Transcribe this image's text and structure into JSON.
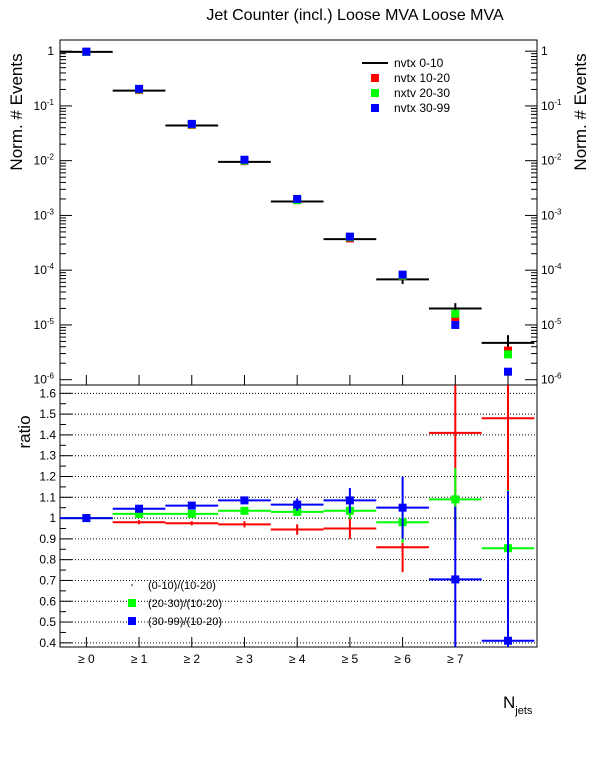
{
  "chart_data": [
    {
      "type": "scatter",
      "title": "Jet Counter (incl.) Loose MVA Loose MVA",
      "ylabel": "Norm. # Events",
      "ylabel_right": "Norm. # Events",
      "yscale": "log",
      "ylim": [
        8e-07,
        1.6
      ],
      "y_ticks": [
        {
          "value": 1,
          "base": "1",
          "exp": ""
        },
        {
          "value": 0.1,
          "base": "10",
          "exp": "-1"
        },
        {
          "value": 0.01,
          "base": "10",
          "exp": "-2"
        },
        {
          "value": 0.001,
          "base": "10",
          "exp": "-3"
        },
        {
          "value": 0.0001,
          "base": "10",
          "exp": "-4"
        },
        {
          "value": 1e-05,
          "base": "10",
          "exp": "-5"
        },
        {
          "value": 1e-06,
          "base": "10",
          "exp": "-6"
        }
      ],
      "x_bins": 9,
      "legend_position": "top-right",
      "series": [
        {
          "name": "nvtx 0-10",
          "color": "#000000",
          "marker": "line",
          "values": [
            0.97,
            0.19,
            0.044,
            0.0095,
            0.0018,
            0.00037,
            6.8e-05,
            2e-05,
            4.7e-06
          ],
          "err_lo": [
            0,
            0,
            0,
            0,
            0,
            0,
            1.2e-05,
            5e-06,
            1.8e-06
          ],
          "err_hi": [
            0,
            0,
            0,
            0,
            0,
            0,
            1.2e-05,
            5e-06,
            1.8e-06
          ]
        },
        {
          "name": "nvtx 10-20",
          "color": "#ff0000",
          "marker": "square",
          "values": [
            0.97,
            0.195,
            0.045,
            0.0098,
            0.0019,
            0.00038,
            7.9e-05,
            1.4e-05,
            3.4e-06
          ],
          "err_lo": [
            0,
            0,
            0,
            0,
            0,
            0,
            0,
            0,
            0
          ],
          "err_hi": [
            0,
            0,
            0,
            0,
            0,
            0,
            0,
            0,
            0
          ]
        },
        {
          "name": "nxtv 20-30",
          "color": "#00ff00",
          "marker": "square",
          "values": [
            0.97,
            0.2,
            0.046,
            0.01,
            0.0019,
            0.0004,
            8e-05,
            1.6e-05,
            2.9e-06
          ],
          "err_lo": [
            0,
            0,
            0,
            0,
            0,
            0,
            0,
            0,
            0
          ],
          "err_hi": [
            0,
            0,
            0,
            0,
            0,
            0,
            0,
            0,
            0
          ]
        },
        {
          "name": "nvtx 30-99",
          "color": "#0000ff",
          "marker": "square",
          "values": [
            0.98,
            0.205,
            0.047,
            0.0104,
            0.002,
            0.00041,
            8.3e-05,
            1e-05,
            1.4e-06
          ],
          "err_lo": [
            0,
            0,
            0,
            0,
            0,
            0,
            0,
            0,
            0
          ],
          "err_hi": [
            0,
            0,
            0,
            0,
            0,
            0,
            0,
            0,
            0
          ]
        }
      ]
    },
    {
      "type": "scatter",
      "ylabel": "ratio",
      "xlabel_base": "N",
      "xlabel_sub": "jets",
      "ylim": [
        0.38,
        1.64
      ],
      "y_ticks": [
        0.4,
        0.5,
        0.6,
        0.7,
        0.8,
        0.9,
        1,
        1.1,
        1.2,
        1.3,
        1.4,
        1.5,
        1.6
      ],
      "y_tick_labels": [
        "0.4",
        "0.5",
        "0.6",
        "0.7",
        "0.8",
        "0.9",
        "1",
        "1.1",
        "1.2",
        "1.3",
        "1.4",
        "1.5",
        "1.6"
      ],
      "grid": "horizontal",
      "categories": [
        "≥ 0",
        "≥ 1",
        "≥ 2",
        "≥ 3",
        "≥ 4",
        "≥ 5",
        "≥ 6",
        "≥ 7",
        ""
      ],
      "legend_position": "bottom-left",
      "series": [
        {
          "name": "(0-10)/(10-20)",
          "color": "#ff0000",
          "marker": "none",
          "values": [
            1.0,
            0.98,
            0.975,
            0.97,
            0.945,
            0.95,
            0.86,
            1.41,
            1.48
          ],
          "err_lo": [
            0,
            0.01,
            0.01,
            0.015,
            0.025,
            0.05,
            0.12,
            0.5,
            0.35
          ],
          "err_hi": [
            0,
            0.01,
            0.01,
            0.015,
            0.025,
            0.05,
            0.12,
            0.5,
            0.35
          ]
        },
        {
          "name": "(20-30)/(10-20)",
          "color": "#00ff00",
          "marker": "square",
          "values": [
            1.0,
            1.02,
            1.02,
            1.035,
            1.03,
            1.035,
            0.98,
            1.09,
            0.855
          ],
          "err_lo": [
            0,
            0.005,
            0.005,
            0.01,
            0.02,
            0.04,
            0.1,
            0.15,
            0.28
          ],
          "err_hi": [
            0,
            0.005,
            0.005,
            0.01,
            0.02,
            0.04,
            0.1,
            0.15,
            0.28
          ]
        },
        {
          "name": "(30-99)/(10-20)",
          "color": "#0000ff",
          "marker": "square",
          "values": [
            1.0,
            1.045,
            1.06,
            1.085,
            1.065,
            1.085,
            1.05,
            0.705,
            0.41
          ],
          "err_lo": [
            0,
            0.01,
            0.01,
            0.015,
            0.03,
            0.06,
            0.15,
            0.35,
            0.03
          ],
          "err_hi": [
            0,
            0.01,
            0.01,
            0.015,
            0.03,
            0.06,
            0.15,
            0.35,
            0.72
          ]
        }
      ]
    }
  ]
}
